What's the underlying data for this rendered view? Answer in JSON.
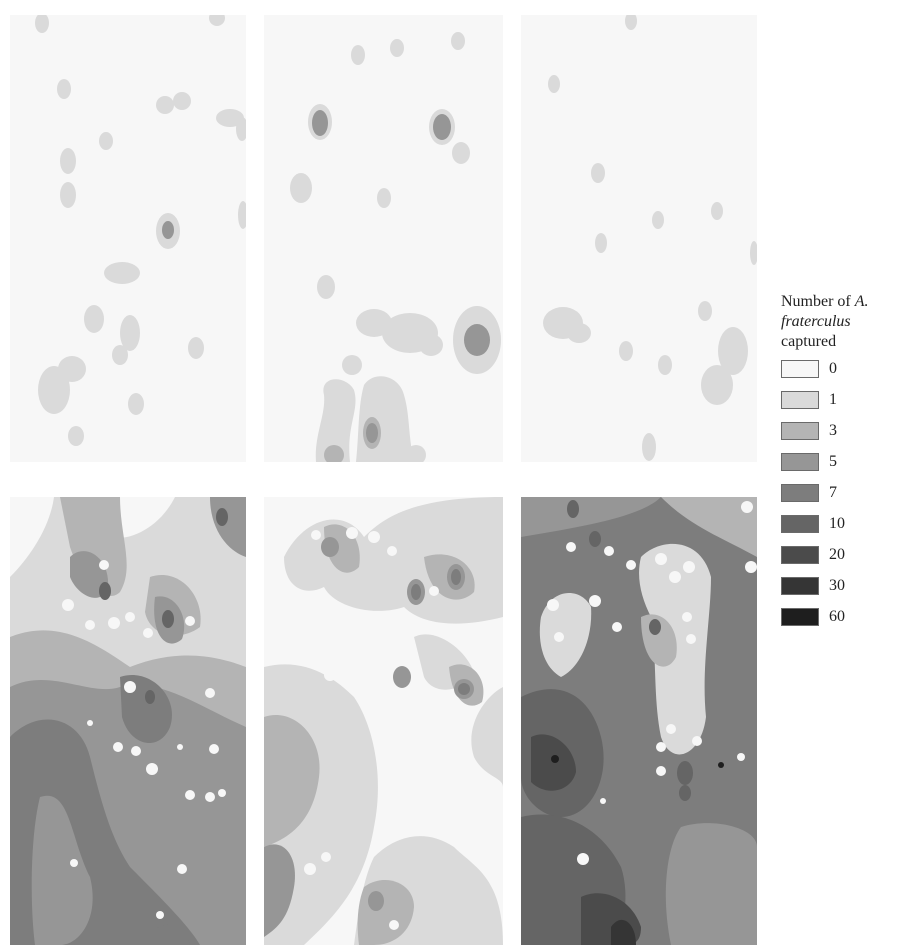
{
  "legend": {
    "title_line1": "Number of ",
    "title_species_a": "A.",
    "title_species_b": "fraterculus",
    "title_line3": "captured",
    "items": [
      {
        "label": "0",
        "color": "#f7f7f7"
      },
      {
        "label": "1",
        "color": "#dadada"
      },
      {
        "label": "3",
        "color": "#b4b4b4"
      },
      {
        "label": "5",
        "color": "#969696"
      },
      {
        "label": "7",
        "color": "#7d7d7d"
      },
      {
        "label": "10",
        "color": "#656565"
      },
      {
        "label": "20",
        "color": "#4b4b4b"
      },
      {
        "label": "30",
        "color": "#353535"
      },
      {
        "label": "60",
        "color": "#1e1e1e"
      }
    ]
  }
}
